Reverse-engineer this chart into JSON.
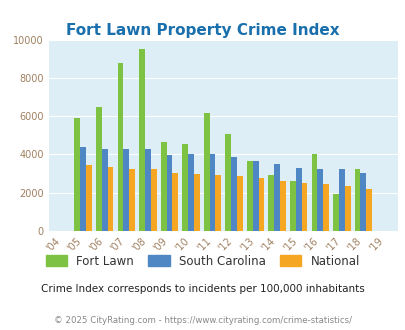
{
  "title": "Fort Lawn Property Crime Index",
  "years": [
    2004,
    2005,
    2006,
    2007,
    2008,
    2009,
    2010,
    2011,
    2012,
    2013,
    2014,
    2015,
    2016,
    2017,
    2018,
    2019
  ],
  "fort_lawn": [
    0,
    5900,
    6500,
    8800,
    9500,
    4650,
    4550,
    6150,
    5050,
    3650,
    2950,
    2600,
    4000,
    1950,
    3250,
    0
  ],
  "south_carolina": [
    0,
    4400,
    4300,
    4300,
    4300,
    3950,
    4000,
    4000,
    3850,
    3650,
    3500,
    3300,
    3250,
    3250,
    3050,
    0
  ],
  "national": [
    0,
    3450,
    3350,
    3250,
    3250,
    3050,
    3000,
    2950,
    2850,
    2750,
    2600,
    2500,
    2450,
    2350,
    2200,
    0
  ],
  "fort_lawn_color": "#7dc242",
  "south_carolina_color": "#4f87c5",
  "national_color": "#f5a623",
  "bg_color": "#ddeef6",
  "ylim": [
    0,
    10000
  ],
  "yticks": [
    0,
    2000,
    4000,
    6000,
    8000,
    10000
  ],
  "subtitle": "Crime Index corresponds to incidents per 100,000 inhabitants",
  "footer": "© 2025 CityRating.com - https://www.cityrating.com/crime-statistics/",
  "legend_labels": [
    "Fort Lawn",
    "South Carolina",
    "National"
  ]
}
